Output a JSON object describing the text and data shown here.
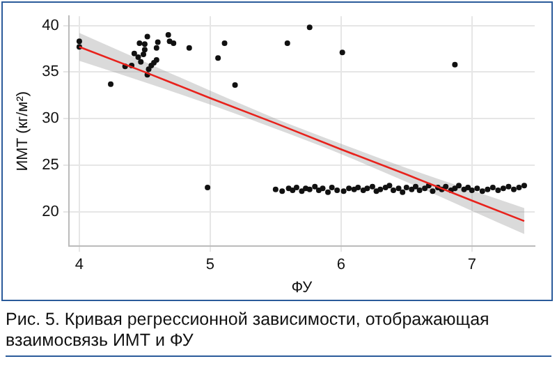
{
  "chart_data": {
    "type": "scatter",
    "xlabel": "ФУ",
    "ylabel": "ИМТ (кг/м²)",
    "xlim": [
      3.92,
      7.48
    ],
    "ylim": [
      16.3,
      41
    ],
    "xticks": [
      4,
      5,
      6,
      7
    ],
    "yticks": [
      20,
      25,
      30,
      35,
      40
    ],
    "grid": true,
    "legend": false,
    "marker": "circle",
    "annotations": [
      "Рис. 5. Кривая регрессионной зависимости, отображающая взаимосвязь ИМТ и ФУ"
    ],
    "series": [
      {
        "color": "#111111",
        "x": [
          4.0,
          4.0,
          4.24,
          4.35,
          4.4,
          4.42,
          4.45,
          4.47,
          4.49,
          4.46,
          4.5,
          4.5,
          4.52,
          4.52,
          4.53,
          4.55,
          4.57,
          4.59,
          4.59,
          4.6,
          4.68,
          4.69,
          4.72,
          4.84,
          5.06,
          5.11,
          5.19,
          5.59,
          5.76,
          6.01,
          6.87,
          4.98,
          5.5,
          5.55,
          5.6,
          5.63,
          5.66,
          5.7,
          5.73,
          5.76,
          5.8,
          5.83,
          5.86,
          5.9,
          5.93,
          5.97,
          6.02,
          6.06,
          6.1,
          6.13,
          6.17,
          6.2,
          6.24,
          6.27,
          6.3,
          6.34,
          6.37,
          6.4,
          6.44,
          6.47,
          6.5,
          6.54,
          6.57,
          6.6,
          6.64,
          6.67,
          6.7,
          6.74,
          6.77,
          6.8,
          6.84,
          6.87,
          6.9,
          6.94,
          6.97,
          7.0,
          7.04,
          7.08,
          7.12,
          7.16,
          7.2,
          7.24,
          7.28,
          7.32,
          7.36,
          7.4
        ],
        "values": [
          38.3,
          37.7,
          33.7,
          35.6,
          35.7,
          37.0,
          36.6,
          36.1,
          36.9,
          38.1,
          38.0,
          37.4,
          38.8,
          34.7,
          35.3,
          35.7,
          36.0,
          36.3,
          37.6,
          38.2,
          39.0,
          38.3,
          38.1,
          37.6,
          36.5,
          38.1,
          33.6,
          38.1,
          39.8,
          37.1,
          35.8,
          22.6,
          22.4,
          22.2,
          22.5,
          22.3,
          22.6,
          22.2,
          22.5,
          22.4,
          22.7,
          22.3,
          22.5,
          22.1,
          22.6,
          22.3,
          22.2,
          22.5,
          22.4,
          22.6,
          22.3,
          22.5,
          22.7,
          22.2,
          22.4,
          22.6,
          22.8,
          22.3,
          22.5,
          22.1,
          22.6,
          22.4,
          22.7,
          22.3,
          22.5,
          22.8,
          22.2,
          22.6,
          22.4,
          22.7,
          22.3,
          22.5,
          22.8,
          22.4,
          22.6,
          22.3,
          22.5,
          22.2,
          22.4,
          22.6,
          22.3,
          22.5,
          22.7,
          22.4,
          22.6,
          22.8
        ]
      },
      {
        "type": "line",
        "color": "#e8221c",
        "marker": "none",
        "x": [
          4,
          4.5,
          5,
          5.5,
          6,
          6.5,
          7,
          7.4
        ],
        "values": [
          37.7,
          35.0,
          32.2,
          29.5,
          26.7,
          24.0,
          21.2,
          19.0
        ],
        "lower": [
          36.2,
          33.9,
          31.5,
          28.9,
          26.2,
          23.2,
          20.1,
          17.6
        ],
        "upper": [
          39.2,
          36.1,
          33.0,
          30.0,
          27.3,
          24.7,
          22.3,
          20.4
        ]
      }
    ]
  }
}
